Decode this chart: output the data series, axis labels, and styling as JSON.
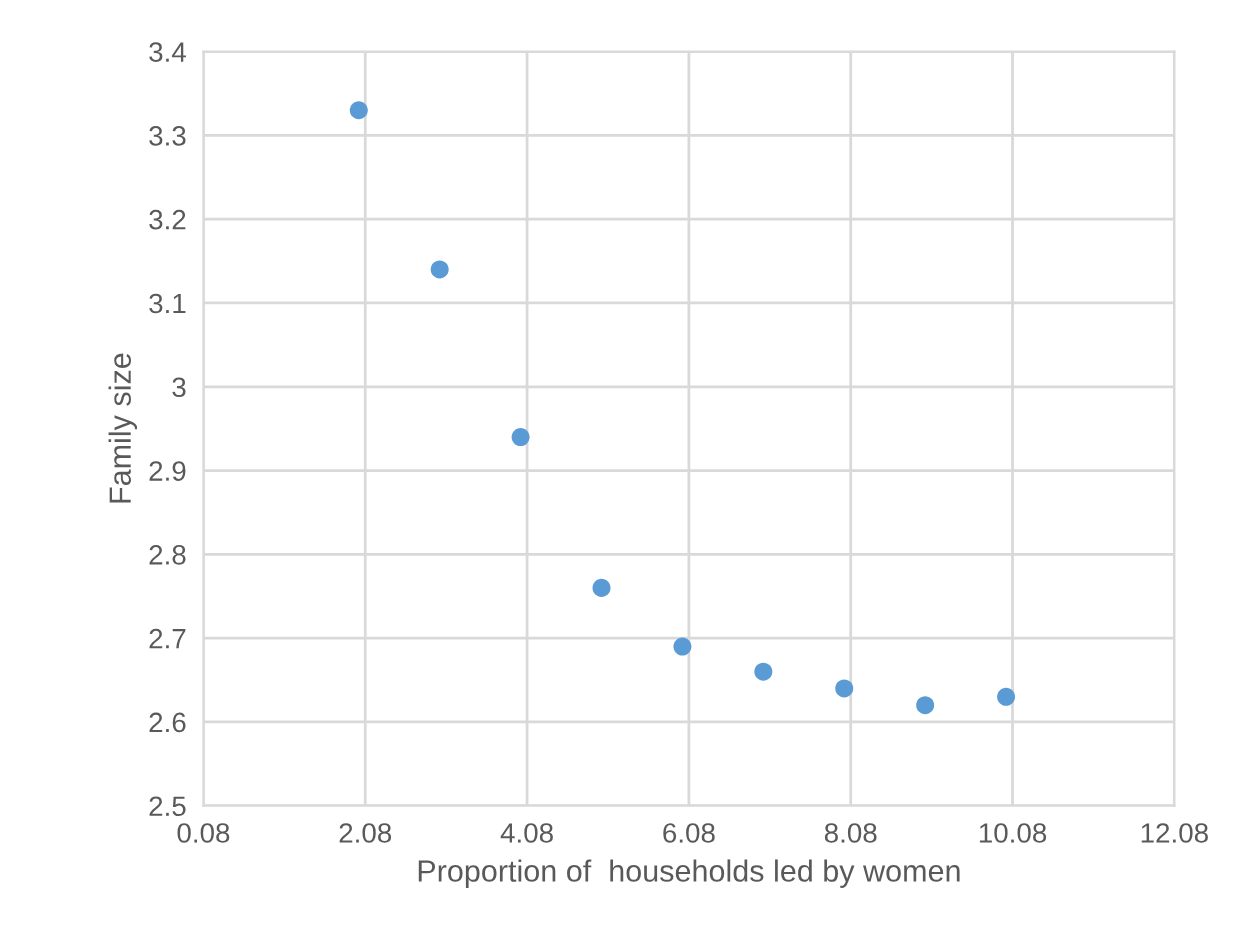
{
  "chart_data": {
    "type": "scatter",
    "xlabel": "Proportion of  households led by women",
    "ylabel": "Family size",
    "x": [
      2,
      3,
      4,
      5,
      6,
      7,
      8,
      9,
      10
    ],
    "values": [
      3.33,
      3.14,
      2.94,
      2.76,
      2.69,
      2.66,
      2.64,
      2.62,
      2.63
    ],
    "color": "#5b9bd5",
    "marker": "circle",
    "xlim": [
      0.08,
      12.08
    ],
    "xticks": [
      {
        "value": 0.08,
        "label": "0.08"
      },
      {
        "value": 2.08,
        "label": "2.08"
      },
      {
        "value": 4.08,
        "label": "4.08"
      },
      {
        "value": 6.08,
        "label": "6.08"
      },
      {
        "value": 8.08,
        "label": "8.08"
      },
      {
        "value": 10.08,
        "label": "10.08"
      },
      {
        "value": 12.08,
        "label": "12.08"
      }
    ],
    "ylim": [
      2.5,
      3.4
    ],
    "yticks": [
      2.5,
      2.6,
      2.7,
      2.8,
      2.9,
      3,
      3.1,
      3.2,
      3.3,
      3.4
    ],
    "grid": true
  }
}
